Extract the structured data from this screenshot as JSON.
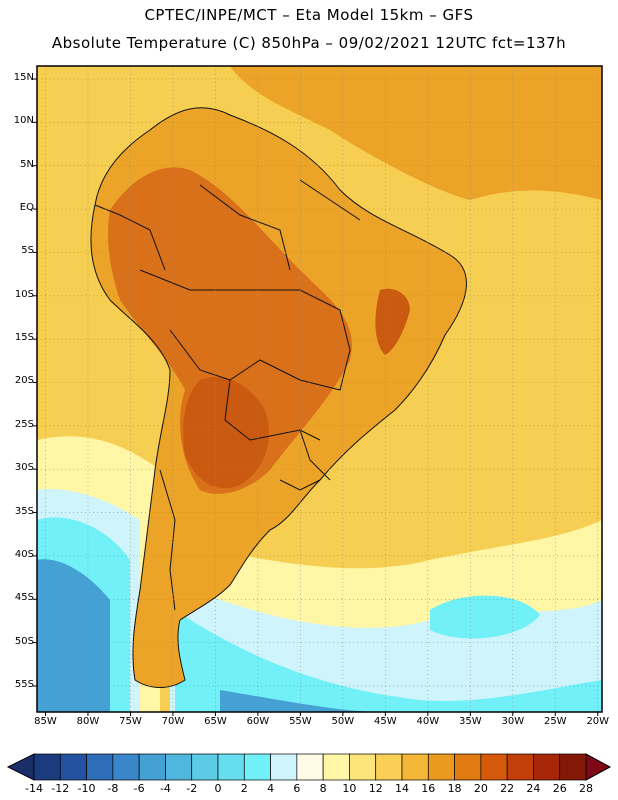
{
  "header": {
    "line1": "CPTEC/INPE/MCT –  Eta Model 15km – GFS",
    "line2": "Absolute Temperature (C) 850hPa – 09/02/2021 12UTC fct=137h"
  },
  "map": {
    "lat_labels": [
      "15N",
      "10N",
      "5N",
      "EQ",
      "5S",
      "10S",
      "15S",
      "20S",
      "25S",
      "30S",
      "35S",
      "40S",
      "45S",
      "50S",
      "55S"
    ],
    "lon_labels": [
      "85W",
      "80W",
      "75W",
      "70W",
      "65W",
      "60W",
      "55W",
      "50W",
      "45W",
      "40W",
      "35W",
      "30W",
      "25W",
      "20W"
    ],
    "extent": {
      "lon_min": -86,
      "lon_max": -19.5,
      "lat_min": -58,
      "lat_max": 16.5
    }
  },
  "colorbar": {
    "labels": [
      "-14",
      "-12",
      "-10",
      "-8",
      "-6",
      "-4",
      "-2",
      "0",
      "2",
      "4",
      "6",
      "8",
      "10",
      "12",
      "14",
      "16",
      "18",
      "20",
      "22",
      "24",
      "26",
      "28"
    ],
    "colors": [
      "#1c3a7e",
      "#2452a0",
      "#2e6db8",
      "#3a86c8",
      "#45a0d4",
      "#4fb7de",
      "#5ccbe6",
      "#67def0",
      "#71f0f8",
      "#cff4fb",
      "#fffbe6",
      "#fff7a6",
      "#fde57a",
      "#f9cf55",
      "#f4b636",
      "#ec9a1e",
      "#e27a12",
      "#d65a0c",
      "#c23e0a",
      "#a62808",
      "#841807"
    ],
    "under_color": "#1a2f6a",
    "over_color": "#800816"
  },
  "fields": {
    "ocean_color": "#f6cf52",
    "continent_color": "#eca428",
    "hot_color": "#d9701a",
    "very_hot_color": "#c95a10",
    "cool_color": "#fff7a6",
    "cold_color": "#cff4fb",
    "colder_color": "#71f0f8",
    "coldest_color": "#45a0d4",
    "border_color": "#111111",
    "grid_color": "#8a8a8a"
  }
}
